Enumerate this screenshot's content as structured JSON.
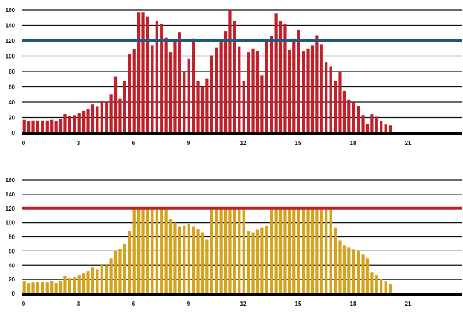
{
  "chart_data": [
    {
      "type": "bar",
      "title": "",
      "xlabel": "",
      "ylabel": "",
      "ylim": [
        0,
        160
      ],
      "xlim": [
        0,
        24
      ],
      "bin_width": 0.25,
      "y_ticks": [
        0,
        20,
        40,
        60,
        80,
        100,
        120,
        140,
        160
      ],
      "x_ticks": [
        0,
        3,
        6,
        9,
        12,
        15,
        18,
        21
      ],
      "y_tick_labels": [
        "0",
        "20",
        "40",
        "60",
        "80",
        "100",
        "120",
        "140",
        "160"
      ],
      "x_tick_labels": [
        "0",
        "3",
        "6",
        "9",
        "12",
        "15",
        "18",
        "21"
      ],
      "grid": "horizontal",
      "bar_color": "#c0202a",
      "reference_line": {
        "value": 120,
        "color": "#1d5a7e"
      },
      "values": [
        17,
        15,
        16,
        16,
        16,
        16,
        17,
        15,
        18,
        25,
        22,
        23,
        26,
        29,
        31,
        37,
        34,
        42,
        40,
        50,
        73,
        45,
        67,
        103,
        109,
        157,
        157,
        151,
        114,
        146,
        142,
        124,
        105,
        121,
        131,
        79,
        97,
        123,
        67,
        60,
        71,
        101,
        111,
        122,
        132,
        160,
        146,
        112,
        67,
        105,
        110,
        107,
        75,
        122,
        126,
        156,
        146,
        142,
        108,
        123,
        134,
        106,
        110,
        114,
        127,
        115,
        92,
        86,
        67,
        79,
        55,
        43,
        40,
        35,
        23,
        12,
        24,
        21,
        15,
        11,
        10
      ]
    },
    {
      "type": "bar",
      "title": "",
      "xlabel": "",
      "ylabel": "",
      "ylim": [
        0,
        160
      ],
      "xlim": [
        0,
        24
      ],
      "bin_width": 0.25,
      "y_ticks": [
        0,
        20,
        40,
        60,
        80,
        100,
        120,
        140,
        160
      ],
      "x_ticks": [
        0,
        3,
        6,
        9,
        12,
        15,
        18,
        21
      ],
      "y_tick_labels": [
        "0",
        "20",
        "40",
        "60",
        "80",
        "100",
        "120",
        "140",
        "160"
      ],
      "x_tick_labels": [
        "0",
        "3",
        "6",
        "9",
        "12",
        "15",
        "18",
        "21"
      ],
      "grid": "horizontal",
      "bar_color": "#d4a21d",
      "reference_line": {
        "value": 120,
        "color": "#c0202a"
      },
      "values": [
        17,
        15,
        16,
        16,
        16,
        16,
        17,
        15,
        18,
        25,
        22,
        23,
        26,
        29,
        31,
        37,
        34,
        42,
        40,
        50,
        60,
        63,
        70,
        88,
        120,
        120,
        120,
        120,
        120,
        120,
        120,
        120,
        105,
        100,
        94,
        96,
        98,
        94,
        91,
        86,
        76,
        120,
        120,
        120,
        120,
        120,
        120,
        120,
        120,
        88,
        86,
        90,
        93,
        95,
        120,
        120,
        120,
        120,
        120,
        120,
        120,
        120,
        120,
        120,
        120,
        120,
        120,
        120,
        93,
        75,
        68,
        65,
        62,
        60,
        55,
        50,
        30,
        26,
        21,
        17,
        13
      ]
    }
  ]
}
